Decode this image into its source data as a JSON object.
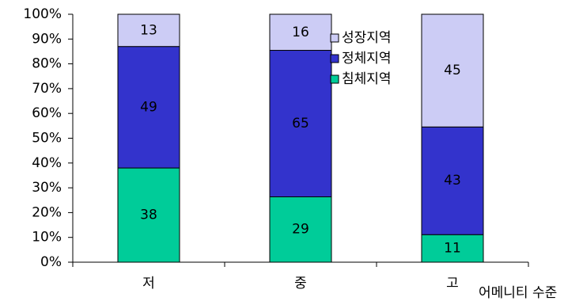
{
  "chart_data": {
    "type": "bar",
    "stacking": "percent",
    "categories": [
      "저",
      "중",
      "고"
    ],
    "series": [
      {
        "name": "침체지역",
        "color": "#00cc99",
        "values": [
          38,
          29,
          11
        ]
      },
      {
        "name": "정체지역",
        "color": "#3333cc",
        "values": [
          49,
          65,
          43
        ]
      },
      {
        "name": "성장지역",
        "color": "#ccccf5",
        "values": [
          13,
          16,
          45
        ]
      }
    ],
    "ylim": [
      0,
      100
    ],
    "yticks": [
      {
        "value": 0,
        "label": "0%"
      },
      {
        "value": 10,
        "label": "10%"
      },
      {
        "value": 20,
        "label": "20%"
      },
      {
        "value": 30,
        "label": "30%"
      },
      {
        "value": 40,
        "label": "40%"
      },
      {
        "value": 50,
        "label": "50%"
      },
      {
        "value": 60,
        "label": "60%"
      },
      {
        "value": 70,
        "label": "70%"
      },
      {
        "value": 80,
        "label": "80%"
      },
      {
        "value": 90,
        "label": "90%"
      },
      {
        "value": 100,
        "label": "100%"
      }
    ],
    "x_label": "어메니티 수준"
  }
}
